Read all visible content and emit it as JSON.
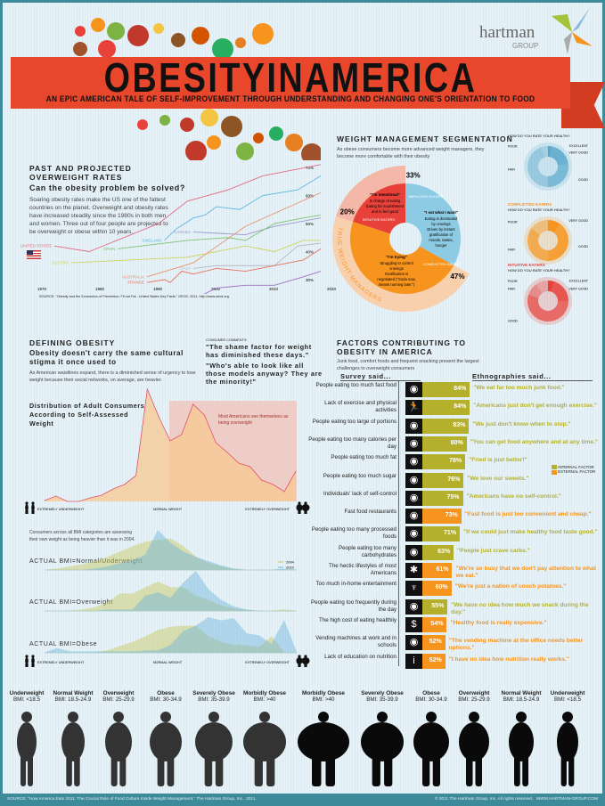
{
  "header": {
    "title": "OBESITYINAMERICA",
    "subtitle": "AN EPIC AMERICAN TALE OF SELF-IMPROVEMENT THROUGH UNDERSTANDING AND CHANGING ONE'S ORIENTATION TO FOOD",
    "logo_text": "hartman",
    "logo_sub": "GROUP"
  },
  "rates": {
    "heading": "PAST AND PROJECTED OVERWEIGHT RATES",
    "subheading": "Can the obesity problem be solved?",
    "body": "Soaring obesity rates make the US one of the fattest countries on the planet. Overweight and obesity rates have increased steadily since the 1980s in both men and women. Three out of four people are projected to be overweight or obese within 10 years.",
    "source": "SOURCE: \"Obesity and the Economics of Prevention: Fit not Fat - United States Key Facts,\" OECD, 2011. http://www.oecd.org"
  },
  "defining": {
    "heading": "DEFINING OBESITY",
    "subheading": "Obesity doesn't carry the same cultural stigma it once used to",
    "body": "As American waistlines expand, there is a diminished sense of urgency to lose weight because their social networks, on average, are heavier.",
    "comments_label": "CONSUMER COMMENTS:",
    "quote1": "\"The shame factor for weight has diminished these days.\"",
    "quote2": "\"Who's able to look like all those models anyway? They are the minority!\"",
    "bmi_intro": "Consumers across all BMI categories are assessing their own weight as being heavier than it was in 2004."
  },
  "segmentation": {
    "heading": "WEIGHT MANAGEMENT SEGMENTATION",
    "body": "As obese consumers become more advanced weight managers, they become more comfortable with their obesity",
    "ring_label": "TRUE WEIGHT MANAGERS",
    "segments": [
      {
        "name": "IMPULSIVE EATERS",
        "pct": 33,
        "pct_label": "33%",
        "quote": "\"I eat what I want\"",
        "lines": [
          "Eating is dominated by cravings",
          "Driven by instant gratification of moods, tastes, hunger"
        ],
        "color": "#8ccbe3"
      },
      {
        "name": "CONFLICTED EATERS",
        "pct": 47,
        "pct_label": "47%",
        "quote": "\"I'm trying\"",
        "lines": [
          "Struggling to control cravings",
          "Gratification is negotiated (\"Soda now, means running later.\")"
        ],
        "color": "#f7941d"
      },
      {
        "name": "INTUITIVE EATERS",
        "pct": 20,
        "pct_label": "20%",
        "quote": "\"I'm intentional\"",
        "lines": [
          "In charge of eating",
          "Eating for nourishment and to feel good"
        ],
        "color": "#e8413a"
      }
    ]
  },
  "health": {
    "question": "HOW DO YOU RATE YOUR HEALTH?",
    "groups": [
      {
        "name": "IMPULSIVE EATERS",
        "color": "#5aa9cc",
        "ratings": [
          {
            "label": "EXCELLENT",
            "value": 3
          },
          {
            "label": "VERY GOOD",
            "value": 20
          },
          {
            "label": "GOOD",
            "value": 27
          },
          {
            "label": "FAIR",
            "value": 45
          },
          {
            "label": "POOR",
            "value": 5
          }
        ]
      },
      {
        "name": "CONFLICTED EATERS",
        "color": "#f7941d",
        "ratings": [
          {
            "label": "VERY GOOD",
            "value": 10
          },
          {
            "label": "GOOD",
            "value": 40
          },
          {
            "label": "FAIR",
            "value": 35
          },
          {
            "label": "POOR",
            "value": 15
          }
        ]
      },
      {
        "name": "INTUITIVE EATERS",
        "color": "#e8413a",
        "ratings": [
          {
            "label": "EXCELLENT",
            "value": 5
          },
          {
            "label": "VERY GOOD",
            "value": 20
          },
          {
            "label": "GOOD",
            "value": 55
          },
          {
            "label": "FAIR",
            "value": 10
          },
          {
            "label": "POOR",
            "value": 10
          }
        ]
      }
    ]
  },
  "factors": {
    "heading": "FACTORS CONTRIBUTING TO OBESITY IN AMERICA",
    "body": "Junk food, comfort foods and frequent snacking present the largest challenges to overweight consumers",
    "survey_label": "Survey said...",
    "ethno_label": "Ethnographies said...",
    "legend": {
      "internal": "INTERNAL FACTOR",
      "external": "EXTERNAL FACTOR"
    },
    "colors": {
      "internal": "#b5b02c",
      "external": "#f7941d"
    },
    "rows": [
      {
        "label": "People eating too much fast food",
        "pct": 84,
        "pct_label": "84%",
        "quote": "\"We eat far too much junk food.\"",
        "type": "internal",
        "icon": "plate-icon"
      },
      {
        "label": "Lack of exercise and physical activities",
        "pct": 84,
        "pct_label": "84%",
        "quote": "\"Americans just don't get enough exercise.\"",
        "type": "internal",
        "icon": "runner-icon"
      },
      {
        "label": "People eating too large of portions",
        "pct": 83,
        "pct_label": "83%",
        "quote": "\"We just don't know when to stop.\"",
        "type": "internal",
        "icon": "plate-icon"
      },
      {
        "label": "People eating too many calories per day",
        "pct": 80,
        "pct_label": "80%",
        "quote": "\"You can get food anywhere and at any time.\"",
        "type": "internal",
        "icon": "plate-icon"
      },
      {
        "label": "People eating too much fat",
        "pct": 78,
        "pct_label": "78%",
        "quote": "\"Fried is just better!\"",
        "type": "internal",
        "icon": "plate-icon"
      },
      {
        "label": "People eating too much sugar",
        "pct": 76,
        "pct_label": "76%",
        "quote": "\"We love our sweets.\"",
        "type": "internal",
        "icon": "plate-icon"
      },
      {
        "label": "Individuals' lack of self-control",
        "pct": 75,
        "pct_label": "75%",
        "quote": "\"Americans have no self-control.\"",
        "type": "internal",
        "icon": "plate-icon"
      },
      {
        "label": "Fast food restaurants",
        "pct": 73,
        "pct_label": "73%",
        "quote": "\"Fast food is just too convenient and cheap.\"",
        "type": "external",
        "icon": "plate-icon"
      },
      {
        "label": "People eating too many processed foods",
        "pct": 71,
        "pct_label": "71%",
        "quote": "\"If we could just make healthy food taste good.\"",
        "type": "internal",
        "icon": "plate-icon"
      },
      {
        "label": "People eating too many carbohydrates",
        "pct": 63,
        "pct_label": "63%",
        "quote": "\"People just crave carbs.\"",
        "type": "internal",
        "icon": "plate-icon"
      },
      {
        "label": "The hectic lifestyles of most Americans",
        "pct": 61,
        "pct_label": "61%",
        "quote": "\"We're so busy that we don't pay attention to what we eat.\"",
        "type": "external",
        "icon": "busy-person-icon"
      },
      {
        "label": "Too much in-home entertainment",
        "pct": 60,
        "pct_label": "60%",
        "quote": "\"We're just a nation of couch potatoes.\"",
        "type": "external",
        "icon": "broadcast-tower-icon"
      },
      {
        "label": "People eating too frequently during the day",
        "pct": 55,
        "pct_label": "55%",
        "quote": "\"We have no idea how much we snack during the day.\"",
        "type": "internal",
        "icon": "plate-icon"
      },
      {
        "label": "The high cost of eating healthily",
        "pct": 54,
        "pct_label": "54%",
        "quote": "\"Healthy food is really expensive.\"",
        "type": "external",
        "icon": "dollar-icon"
      },
      {
        "label": "Vending machines at work and in schools",
        "pct": 52,
        "pct_label": "52%",
        "quote": "\"The vending machine at the office needs better options.\"",
        "type": "external",
        "icon": "plate-icon"
      },
      {
        "label": "Lack of education on nutrition",
        "pct": 52,
        "pct_label": "52%",
        "quote": "\"I have no idea how nutrition really works.\"",
        "type": "external",
        "icon": "info-icon"
      }
    ]
  },
  "silhouettes": [
    {
      "title": "Underweight",
      "bmi": "BMI: <18.5",
      "gender": "female"
    },
    {
      "title": "Normal Weight",
      "bmi": "BMI: 18.5-24.9",
      "gender": "female"
    },
    {
      "title": "Overweight",
      "bmi": "BMI: 25-29.9",
      "gender": "female"
    },
    {
      "title": "Obese",
      "bmi": "BMI: 30-34.9",
      "gender": "female"
    },
    {
      "title": "Severely Obese",
      "bmi": "BMI: 35-39.9",
      "gender": "female"
    },
    {
      "title": "Morbidly Obese",
      "bmi": "BMI: >40",
      "gender": "female"
    },
    {
      "title": "Morbidly Obese",
      "bmi": "BMI: >40",
      "gender": "male"
    },
    {
      "title": "Severely Obese",
      "bmi": "BMI: 35-39.9",
      "gender": "male"
    },
    {
      "title": "Obese",
      "bmi": "BMI: 30-34.9",
      "gender": "male"
    },
    {
      "title": "Overweight",
      "bmi": "BMI: 25-29.9",
      "gender": "male"
    },
    {
      "title": "Normal Weight",
      "bmi": "BMI: 18.5-24.9",
      "gender": "male"
    },
    {
      "title": "Underweight",
      "bmi": "BMI: <18.5",
      "gender": "male"
    }
  ],
  "footer": {
    "source": "SOURCE: \"How America Eats 2011: The Crucial Role of Food Culture Inside Weight Management,\" The Hartman Group, Inc., 2011.",
    "copyright": "© 2011 The Hartman Group, Inc. All rights reserved.",
    "url": "WWW.HARTMAN-GROUP.COM"
  },
  "chart_data": [
    {
      "type": "line",
      "title": "PAST AND PROJECTED OVERWEIGHT RATES",
      "x_ticks": [
        "1970",
        "1980",
        "1990",
        "2000",
        "2010",
        "2020"
      ],
      "y_ticks": [
        "30%",
        "40%",
        "50%",
        "60%",
        "70%"
      ],
      "xlim": [
        1970,
        2020
      ],
      "ylim": [
        20,
        72
      ],
      "grid": false,
      "series": [
        {
          "name": "UNITED STATES",
          "color": "#e36a80",
          "points": [
            [
              1972,
              42
            ],
            [
              1978,
              40
            ],
            [
              1990,
              50
            ],
            [
              1995,
              58
            ],
            [
              2002,
              62
            ],
            [
              2008,
              67
            ],
            [
              2018,
              71
            ]
          ]
        },
        {
          "name": "ENGLAND",
          "color": "#5fb6e0",
          "points": [
            [
              1991,
              44
            ],
            [
              1993,
              48
            ],
            [
              1996,
              52
            ],
            [
              1998,
              53
            ],
            [
              2000,
              56
            ],
            [
              2004,
              55
            ],
            [
              2008,
              60
            ],
            [
              2014,
              62
            ],
            [
              2018,
              67
            ]
          ]
        },
        {
          "name": "CANADA",
          "color": "#9a96c8",
          "points": [
            [
              1996,
              47
            ],
            [
              2005,
              46
            ],
            [
              2010,
              49
            ],
            [
              2018,
              52
            ]
          ]
        },
        {
          "name": "SPAIN",
          "color": "#7cc36f",
          "points": [
            [
              1983,
              41
            ],
            [
              1995,
              44
            ],
            [
              2002,
              45
            ],
            [
              2005,
              44
            ],
            [
              2010,
              50
            ],
            [
              2015,
              52
            ],
            [
              2018,
              53
            ]
          ]
        },
        {
          "name": "AUSTRIA",
          "color": "#cfd25a",
          "points": [
            [
              1975,
              36
            ],
            [
              1995,
              38
            ],
            [
              2005,
              42
            ],
            [
              2010,
              40
            ],
            [
              2015,
              44
            ],
            [
              2018,
              44
            ]
          ]
        },
        {
          "name": "ITALY",
          "color": "#b8b8c0",
          "points": [
            [
              1996,
              34
            ],
            [
              2000,
              35
            ],
            [
              2010,
              35
            ],
            [
              2014,
              42
            ],
            [
              2018,
              43
            ]
          ]
        },
        {
          "name": "AUSTRALIA",
          "color": "#e8916a",
          "points": [
            [
              1988,
              31
            ],
            [
              1996,
              36
            ],
            [
              2005,
              49
            ],
            [
              2018,
              61
            ]
          ]
        },
        {
          "name": "FRANCE",
          "color": "#e8705a",
          "points": [
            [
              1988,
              29
            ],
            [
              1991,
              30
            ],
            [
              1992,
              29
            ],
            [
              1994,
              33
            ],
            [
              1996,
              32
            ],
            [
              2000,
              34
            ],
            [
              2005,
              33
            ],
            [
              2015,
              37
            ],
            [
              2018,
              41
            ]
          ]
        },
        {
          "name": "KOREA",
          "color": "#9b6fc0",
          "points": [
            [
              1996,
              23
            ],
            [
              2000,
              27
            ],
            [
              2005,
              28
            ],
            [
              2010,
              28
            ],
            [
              2015,
              31
            ],
            [
              2018,
              33
            ]
          ]
        }
      ]
    },
    {
      "type": "area",
      "title": "Distribution of Adult Consumers According to Self-Assessed Weight",
      "x_labels": [
        "EXTREMELY UNDERWEIGHT",
        "NORMAL WEIGHT",
        "EXTREMELY OVERWEIGHT"
      ],
      "annotation": "Most Americans see themselves as being overweight",
      "values": [
        1,
        6,
        0,
        0,
        4,
        7,
        14,
        19,
        29,
        126,
        95,
        68,
        75,
        109,
        97,
        66,
        55,
        43,
        39,
        24,
        19,
        11,
        34
      ]
    },
    {
      "type": "area",
      "legend": [
        "2004",
        "2010"
      ],
      "x_labels": [
        "EXTREMELY UNDERWEIGHT",
        "NORMAL WEIGHT",
        "EXTREMELY OVERWEIGHT"
      ],
      "panels": [
        {
          "label": "ACTUAL BMI=Normal/Underweight",
          "series": [
            {
              "name": "2004",
              "color": "#c9c65a",
              "values": [
                0,
                1,
                3,
                5,
                8,
                12,
                17,
                22,
                26,
                28,
                29,
                22,
                12,
                6,
                3,
                1,
                0,
                0,
                0,
                0,
                0
              ]
            },
            {
              "name": "2010",
              "color": "#6db5dc",
              "values": [
                0,
                0,
                0,
                0,
                1,
                3,
                6,
                9,
                14,
                37,
                25,
                17,
                12,
                8,
                4,
                1,
                0,
                0,
                0,
                1,
                0
              ]
            }
          ]
        },
        {
          "label": "ACTUAL BMI=Overweight",
          "series": [
            {
              "name": "2004",
              "color": "#c9c65a",
              "values": [
                0,
                0,
                0,
                1,
                3,
                8,
                16,
                16,
                22,
                27,
                22,
                22,
                14,
                10,
                5,
                2,
                1,
                0,
                0,
                1,
                0
              ]
            },
            {
              "name": "2010",
              "color": "#6db5dc",
              "values": [
                0,
                0,
                0,
                0,
                0,
                1,
                1,
                1,
                14,
                17,
                12,
                26,
                37,
                20,
                10,
                4,
                1,
                0,
                0,
                0,
                0
              ]
            }
          ]
        },
        {
          "label": "ACTUAL BMI=Obese",
          "series": [
            {
              "name": "2004",
              "color": "#c9c65a",
              "values": [
                0,
                0,
                0,
                0,
                0,
                2,
                6,
                10,
                15,
                21,
                24,
                25,
                25,
                15,
                10,
                7,
                7,
                5,
                15,
                0,
                0
              ]
            },
            {
              "name": "2010",
              "color": "#6db5dc",
              "values": [
                0,
                4,
                1,
                1,
                1,
                1,
                1,
                1,
                2,
                2,
                7,
                20,
                25,
                33,
                30,
                32,
                18,
                16,
                8,
                30,
                0
              ]
            }
          ]
        }
      ]
    }
  ]
}
